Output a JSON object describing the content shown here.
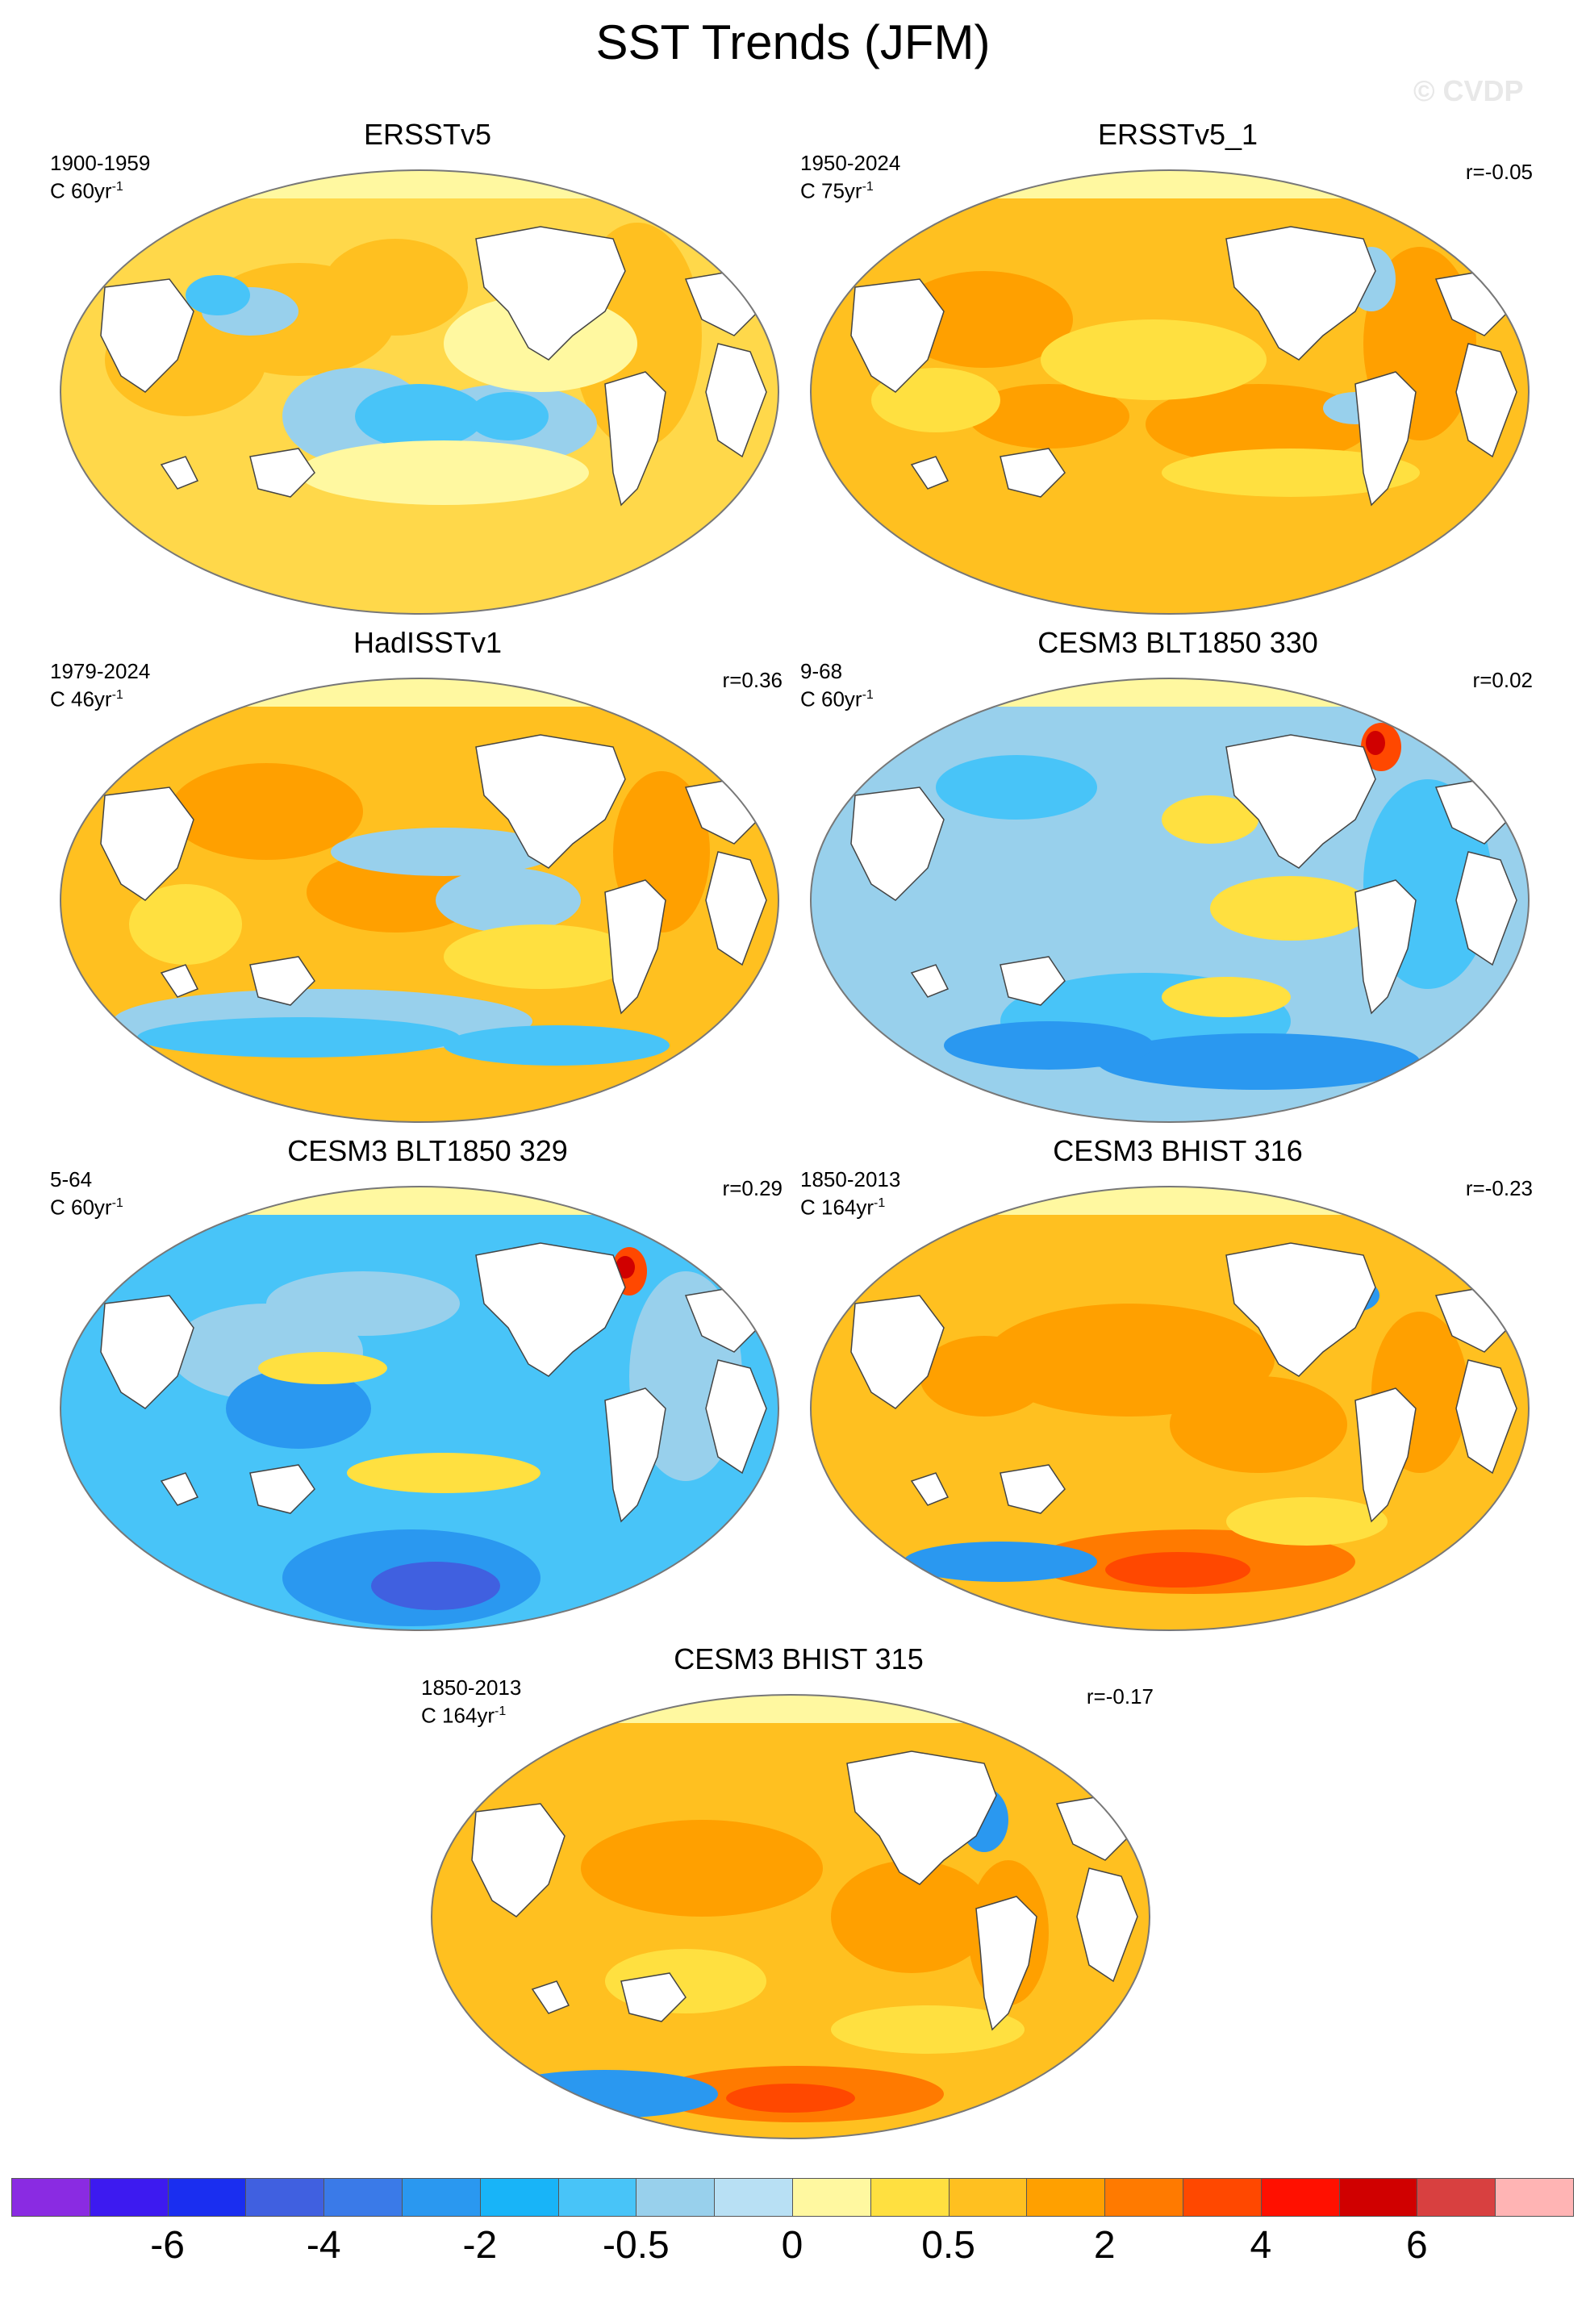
{
  "figure": {
    "title": "SST Trends (JFM)",
    "watermark": "© CVDP"
  },
  "chart_data": {
    "type": "heatmap",
    "title": "SST Trends (JFM)",
    "projection": "global ocean map",
    "panels": [
      {
        "title": "ERSSTv5",
        "period": "1900-1959",
        "units": "C 60yr",
        "units_exp": "-1",
        "corr": "",
        "pattern": "mixed"
      },
      {
        "title": "ERSSTv5_1",
        "period": "1950-2024",
        "units": "C 75yr",
        "units_exp": "-1",
        "corr": "r=-0.05",
        "pattern": "warm"
      },
      {
        "title": "HadISSTv1",
        "period": "1979-2024",
        "units": "C 46yr",
        "units_exp": "-1",
        "corr": "r=0.36",
        "pattern": "warm-cool-south"
      },
      {
        "title": "CESM3 BLT1850 330",
        "period": "9-68",
        "units": "C 60yr",
        "units_exp": "-1",
        "corr": "r=0.02",
        "pattern": "cool"
      },
      {
        "title": "CESM3 BLT1850 329",
        "period": "5-64",
        "units": "C 60yr",
        "units_exp": "-1",
        "corr": "r=0.29",
        "pattern": "cooler"
      },
      {
        "title": "CESM3 BHIST 316",
        "period": "1850-2013",
        "units": "C 164yr",
        "units_exp": "-1",
        "corr": "r=-0.23",
        "pattern": "hot"
      },
      {
        "title": "CESM3 BHIST 315",
        "period": "1850-2013",
        "units": "C 164yr",
        "units_exp": "-1",
        "corr": "r=-0.17",
        "pattern": "hot2"
      }
    ],
    "colorbar": {
      "colors": [
        "#8a2be2",
        "#3d1af0",
        "#1a2ef0",
        "#4060e0",
        "#3a7ae8",
        "#2a98f0",
        "#18b4f8",
        "#48c4f8",
        "#98d0ec",
        "#b8e0f4",
        "#fff8a0",
        "#ffe040",
        "#ffc020",
        "#ffa000",
        "#ff7a00",
        "#ff4800",
        "#ff1000",
        "#d00000",
        "#d84040",
        "#ffb4b4"
      ],
      "labels": [
        "-6",
        "-4",
        "-2",
        "-0.5",
        "0",
        "0.5",
        "2",
        "4",
        "6"
      ]
    }
  }
}
